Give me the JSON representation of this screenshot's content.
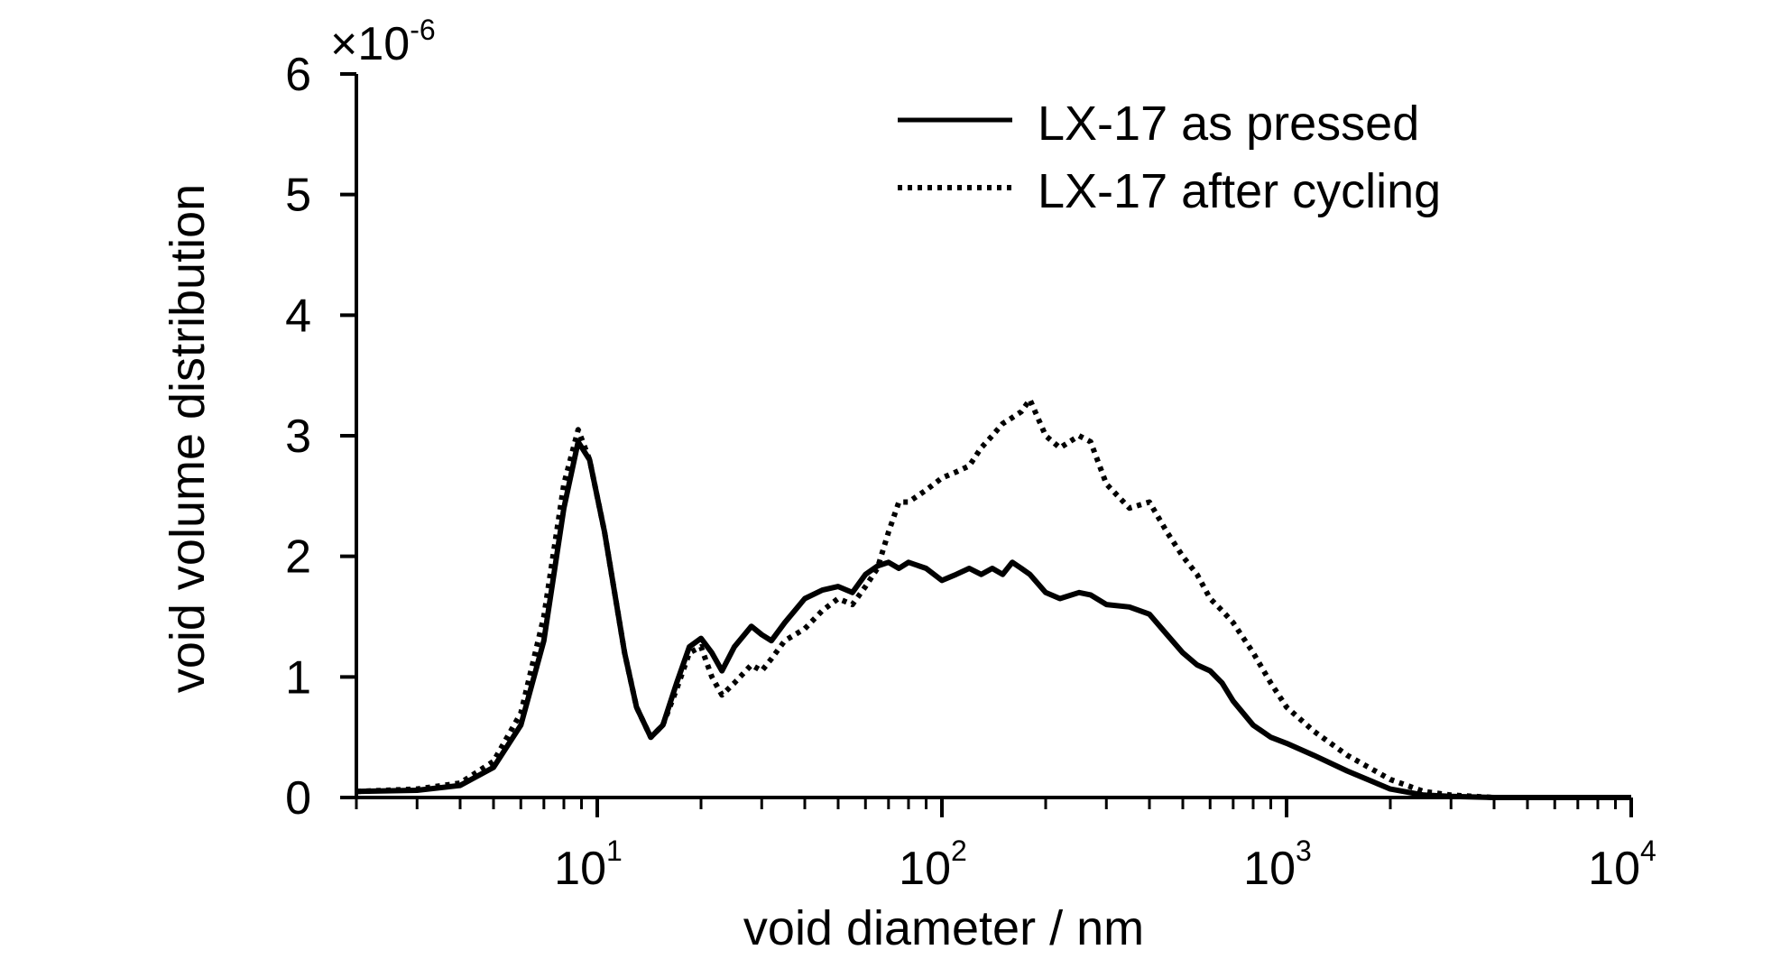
{
  "chart_data": {
    "type": "line",
    "xscale": "log",
    "xlim": [
      2,
      10000
    ],
    "ylim": [
      0,
      6
    ],
    "y_multiplier_label": "×10",
    "y_multiplier_exponent": "-6",
    "xlabel": "void diameter / nm",
    "ylabel": "void volume distribution",
    "yticks": [
      "0",
      "1",
      "2",
      "3",
      "4",
      "5",
      "6"
    ],
    "xticks": [
      {
        "base": "10",
        "exp": "1",
        "value": 10
      },
      {
        "base": "10",
        "exp": "2",
        "value": 100
      },
      {
        "base": "10",
        "exp": "3",
        "value": 1000
      },
      {
        "base": "10",
        "exp": "4",
        "value": 10000
      }
    ],
    "grid": false,
    "legend_position": "top-right",
    "series": [
      {
        "name": "LX-17 as pressed",
        "style": "solid",
        "color": "#000000",
        "x": [
          2,
          3,
          4,
          5,
          6,
          7,
          8,
          8.8,
          9.5,
          10.5,
          12,
          13,
          14.3,
          15.5,
          17,
          18.5,
          20,
          21.5,
          23,
          25,
          28,
          30,
          32,
          35,
          40,
          45,
          50,
          55,
          60,
          65,
          70,
          75,
          80,
          90,
          100,
          110,
          120,
          130,
          140,
          150,
          160,
          170,
          180,
          200,
          220,
          250,
          270,
          300,
          350,
          400,
          450,
          500,
          550,
          600,
          650,
          700,
          800,
          900,
          1000,
          1200,
          1500,
          2000,
          2500,
          3000,
          4000,
          6000,
          10000
        ],
        "y": [
          0.05,
          0.06,
          0.1,
          0.25,
          0.6,
          1.3,
          2.4,
          2.95,
          2.8,
          2.2,
          1.2,
          0.75,
          0.5,
          0.6,
          0.95,
          1.25,
          1.32,
          1.2,
          1.05,
          1.25,
          1.42,
          1.35,
          1.3,
          1.45,
          1.65,
          1.72,
          1.75,
          1.7,
          1.85,
          1.92,
          1.95,
          1.9,
          1.95,
          1.9,
          1.8,
          1.85,
          1.9,
          1.85,
          1.9,
          1.85,
          1.95,
          1.9,
          1.85,
          1.7,
          1.65,
          1.7,
          1.68,
          1.6,
          1.58,
          1.52,
          1.35,
          1.2,
          1.1,
          1.05,
          0.95,
          0.8,
          0.6,
          0.5,
          0.45,
          0.35,
          0.22,
          0.07,
          0.02,
          0.01,
          0.0,
          0.0,
          0.0
        ]
      },
      {
        "name": "LX-17 after cycling",
        "style": "dotted",
        "color": "#000000",
        "x": [
          2,
          3,
          4,
          5,
          6,
          7,
          8,
          8.8,
          9.5,
          10.5,
          12,
          13,
          14.3,
          15.5,
          17,
          18.5,
          20,
          21.5,
          23,
          25,
          28,
          30,
          32,
          35,
          40,
          45,
          50,
          55,
          60,
          65,
          70,
          75,
          80,
          90,
          100,
          110,
          120,
          130,
          140,
          150,
          160,
          170,
          180,
          200,
          220,
          250,
          270,
          300,
          350,
          400,
          450,
          500,
          550,
          600,
          650,
          700,
          800,
          900,
          1000,
          1200,
          1500,
          2000,
          2500,
          3000,
          4000,
          6000,
          10000
        ],
        "y": [
          0.05,
          0.07,
          0.12,
          0.3,
          0.7,
          1.5,
          2.6,
          3.05,
          2.8,
          2.2,
          1.2,
          0.75,
          0.5,
          0.6,
          0.9,
          1.2,
          1.25,
          1.0,
          0.85,
          0.95,
          1.1,
          1.05,
          1.15,
          1.3,
          1.4,
          1.55,
          1.65,
          1.6,
          1.75,
          1.9,
          2.2,
          2.45,
          2.45,
          2.55,
          2.65,
          2.7,
          2.75,
          2.9,
          3.0,
          3.1,
          3.15,
          3.2,
          3.3,
          3.0,
          2.9,
          3.0,
          2.95,
          2.6,
          2.4,
          2.45,
          2.2,
          2.0,
          1.85,
          1.65,
          1.55,
          1.45,
          1.2,
          0.95,
          0.75,
          0.55,
          0.35,
          0.15,
          0.05,
          0.02,
          0.0,
          0.0,
          0.0
        ]
      }
    ]
  }
}
